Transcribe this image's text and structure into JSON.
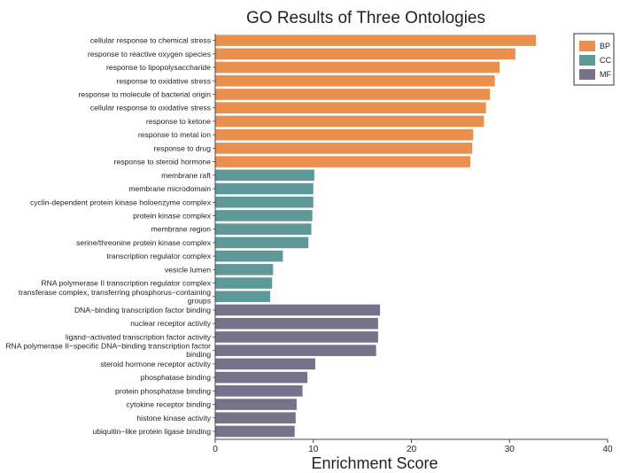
{
  "chart_data": {
    "type": "bar",
    "orientation": "horizontal",
    "title": "GO Results of Three Ontologies",
    "xlabel": "Enrichment Score",
    "ylabel": "",
    "xlim": [
      0,
      40
    ],
    "xticks": [
      "0",
      "10",
      "20",
      "30",
      "40"
    ],
    "legend": {
      "position": "top-right",
      "entries": [
        {
          "key": "BP",
          "label": "BP",
          "color": "#EA904F"
        },
        {
          "key": "CC",
          "label": "CC",
          "color": "#5F9898"
        },
        {
          "key": "MF",
          "label": "MF",
          "color": "#777189"
        }
      ]
    },
    "bars": [
      {
        "label": "cellular response to chemical stress",
        "value": 32.7,
        "group": "BP"
      },
      {
        "label": "response to reactive oxygen species",
        "value": 30.6,
        "group": "BP"
      },
      {
        "label": "response to lipopolysaccharide",
        "value": 29.0,
        "group": "BP"
      },
      {
        "label": "response to oxidative stress",
        "value": 28.5,
        "group": "BP"
      },
      {
        "label": "response to molecule of bacterial origin",
        "value": 28.0,
        "group": "BP"
      },
      {
        "label": "cellular response to oxidative stress",
        "value": 27.6,
        "group": "BP"
      },
      {
        "label": "response to ketone",
        "value": 27.4,
        "group": "BP"
      },
      {
        "label": "response to metal ion",
        "value": 26.3,
        "group": "BP"
      },
      {
        "label": "response to drug",
        "value": 26.2,
        "group": "BP"
      },
      {
        "label": "response to steroid hormone",
        "value": 26.0,
        "group": "BP"
      },
      {
        "label": "membrane raft",
        "value": 10.1,
        "group": "CC"
      },
      {
        "label": "membrane microdomain",
        "value": 10.0,
        "group": "CC"
      },
      {
        "label": "cyclin-dependent protein kinase holoenzyme complex",
        "value": 10.0,
        "group": "CC"
      },
      {
        "label": "protein kinase complex",
        "value": 9.9,
        "group": "CC"
      },
      {
        "label": "membrane region",
        "value": 9.8,
        "group": "CC"
      },
      {
        "label": "serine/threonine protein kinase complex",
        "value": 9.5,
        "group": "CC"
      },
      {
        "label": "transcription regulator complex",
        "value": 6.9,
        "group": "CC"
      },
      {
        "label": "vesicle lumen",
        "value": 5.9,
        "group": "CC"
      },
      {
        "label": "RNA polymerase II transcription regulator complex",
        "value": 5.8,
        "group": "CC"
      },
      {
        "label": [
          "transferase complex, transferring phosphorus−containing",
          "groups"
        ],
        "value": 5.6,
        "group": "CC"
      },
      {
        "label": "DNA−binding transcription factor binding",
        "value": 16.8,
        "group": "MF"
      },
      {
        "label": "nuclear receptor activity",
        "value": 16.6,
        "group": "MF"
      },
      {
        "label": "ligand−activated transcription factor activity",
        "value": 16.6,
        "group": "MF"
      },
      {
        "label": [
          "RNA polymerase II−specific DNA−binding transcription factor",
          "binding"
        ],
        "value": 16.4,
        "group": "MF"
      },
      {
        "label": "steroid hormone receptor activity",
        "value": 10.2,
        "group": "MF"
      },
      {
        "label": "phosphatase binding",
        "value": 9.4,
        "group": "MF"
      },
      {
        "label": "protein phosphatase binding",
        "value": 8.9,
        "group": "MF"
      },
      {
        "label": "cytokine receptor binding",
        "value": 8.3,
        "group": "MF"
      },
      {
        "label": "histone kinase activity",
        "value": 8.2,
        "group": "MF"
      },
      {
        "label": "ubiquitin−like protein ligase binding",
        "value": 8.1,
        "group": "MF"
      }
    ]
  }
}
